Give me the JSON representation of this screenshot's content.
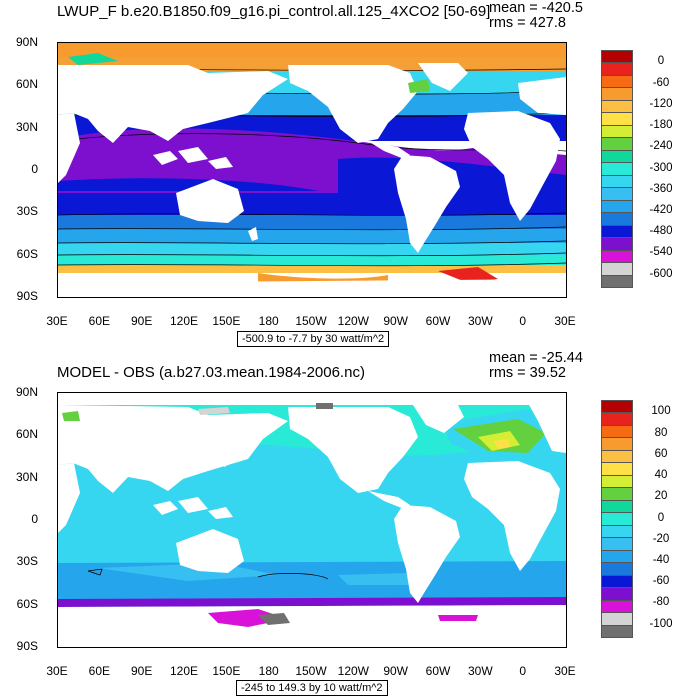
{
  "top": {
    "title": "LWUP_F b.e20.B1850.f09_g16.pi_control.all.125_4XCO2 [50-69]",
    "mean": "mean = -420.5",
    "rms": "rms = 427.8",
    "range": "-500.9 to -7.7 by 30 watt/m^2",
    "colorbar": {
      "labels": [
        "0",
        "-60",
        "-120",
        "-180",
        "-240",
        "-300",
        "-360",
        "-420",
        "-480",
        "-540",
        "-600"
      ],
      "colors": [
        "#b40000",
        "#e8231f",
        "#f56a12",
        "#f89b2e",
        "#fbbf43",
        "#ffe046",
        "#d4ee36",
        "#63d040",
        "#10d89a",
        "#29ead6",
        "#36d6f0",
        "#37bff2",
        "#24a5ec",
        "#1a79dc",
        "#0a18d6",
        "#7d10cf",
        "#d812d9",
        "#d4d4d4",
        "#707070"
      ]
    }
  },
  "bottom": {
    "title": "MODEL - OBS (a.b27.03.mean.1984-2006.nc)",
    "mean": "mean = -25.44",
    "rms": "rms = 39.52",
    "range": "-245 to 149.3 by 10 watt/m^2",
    "colorbar": {
      "labels": [
        "100",
        "80",
        "60",
        "40",
        "20",
        "0",
        "-20",
        "-40",
        "-60",
        "-80",
        "-100"
      ],
      "colors": [
        "#b40000",
        "#e8231f",
        "#f56a12",
        "#f89b2e",
        "#fbbf43",
        "#ffe046",
        "#d4ee36",
        "#63d040",
        "#10d89a",
        "#29ead6",
        "#36d6f0",
        "#37bff2",
        "#24a5ec",
        "#1a79dc",
        "#0a18d6",
        "#7d10cf",
        "#d812d9",
        "#d4d4d4",
        "#707070"
      ]
    }
  },
  "axes": {
    "lat_labels": [
      "90N",
      "60N",
      "30N",
      "0",
      "30S",
      "60S",
      "90S"
    ],
    "lon_labels": [
      "30E",
      "60E",
      "90E",
      "120E",
      "150E",
      "180",
      "150W",
      "120W",
      "90W",
      "60W",
      "30W",
      "0",
      "30E"
    ]
  }
}
